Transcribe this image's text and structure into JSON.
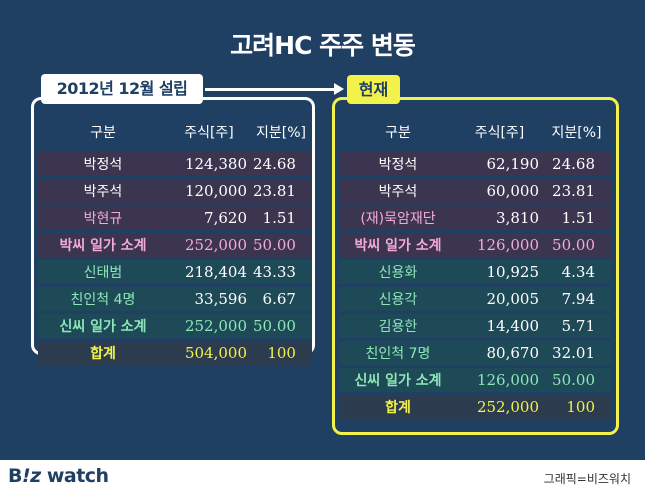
{
  "title": "고려HC 주주 변동",
  "left_label": "2012년 12월 설립",
  "right_label": "현재",
  "headers": [
    "구분",
    "주식[주]",
    "지분[%]"
  ],
  "left_rows": [
    {
      "name": "박정석",
      "shares": "124,380",
      "pct": "24.68",
      "group": "park"
    },
    {
      "name": "박주석",
      "shares": "120,000",
      "pct": "23.81",
      "group": "park"
    },
    {
      "name": "박현규",
      "shares": "7,620",
      "pct": "1.51",
      "group": "park-pink"
    },
    {
      "name": "박씨 일가 소계",
      "shares": "252,000",
      "pct": "50.00",
      "group": "park-sub"
    },
    {
      "name": "신태범",
      "shares": "218,404",
      "pct": "43.33",
      "group": "shin"
    },
    {
      "name": "친인척 4명",
      "shares": "33,596",
      "pct": "6.67",
      "group": "shin"
    },
    {
      "name": "신씨 일가 소계",
      "shares": "252,000",
      "pct": "50.00",
      "group": "shin-sub"
    },
    {
      "name": "합계",
      "shares": "504,000",
      "pct": "100",
      "group": "total"
    }
  ],
  "right_rows": [
    {
      "name": "박정석",
      "shares": "62,190",
      "pct": "24.68",
      "group": "park"
    },
    {
      "name": "박주석",
      "shares": "60,000",
      "pct": "23.81",
      "group": "park"
    },
    {
      "name": "(재)묵암재단",
      "shares": "3,810",
      "pct": "1.51",
      "group": "park-pink"
    },
    {
      "name": "박씨 일가 소계",
      "shares": "126,000",
      "pct": "50.00",
      "group": "park-sub"
    },
    {
      "name": "신용화",
      "shares": "10,925",
      "pct": "4.34",
      "group": "shin"
    },
    {
      "name": "신용각",
      "shares": "20,005",
      "pct": "7.94",
      "group": "shin"
    },
    {
      "name": "김용한",
      "shares": "14,400",
      "pct": "5.71",
      "group": "shin"
    },
    {
      "name": "친인척 7명",
      "shares": "80,670",
      "pct": "32.01",
      "group": "shin"
    },
    {
      "name": "신씨 일가 소계",
      "shares": "126,000",
      "pct": "50.00",
      "group": "shin-sub"
    },
    {
      "name": "합계",
      "shares": "252,000",
      "pct": "100",
      "group": "total"
    }
  ],
  "footer": {
    "logo_b": "B",
    "logo_iz": "!z",
    "logo_watch": " watch",
    "credit": "그래픽=비즈워치"
  },
  "colors": {
    "background": "#1f3f63",
    "accent_yellow": "#f2f24a",
    "park_pink": "#f4a9d6",
    "shin_green": "#8ee6b8"
  }
}
